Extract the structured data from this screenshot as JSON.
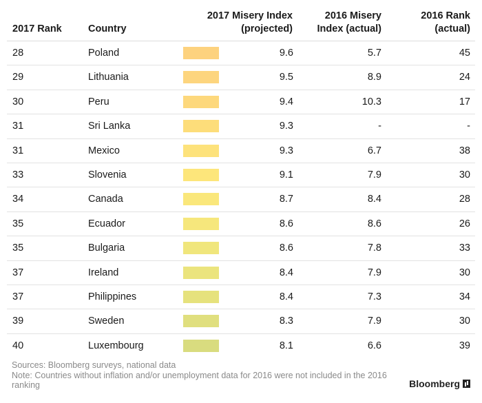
{
  "chart_data": {
    "type": "table",
    "columns": [
      "2017 Rank",
      "Country",
      "2017 Misery Index\n(projected)",
      "2016 Misery\nIndex (actual)",
      "2016 Rank\n(actual)"
    ],
    "rows": [
      {
        "rank2017": "28",
        "country": "Poland",
        "misery2017": "9.6",
        "misery2016": "5.7",
        "rank2016": "45",
        "color": "#fdd27e"
      },
      {
        "rank2017": "29",
        "country": "Lithuania",
        "misery2017": "9.5",
        "misery2016": "8.9",
        "rank2016": "24",
        "color": "#fdd57e"
      },
      {
        "rank2017": "30",
        "country": "Peru",
        "misery2017": "9.4",
        "misery2016": "10.3",
        "rank2016": "17",
        "color": "#fdd87c"
      },
      {
        "rank2017": "31",
        "country": "Sri Lanka",
        "misery2017": "9.3",
        "misery2016": "-",
        "rank2016": "-",
        "color": "#fddd7a"
      },
      {
        "rank2017": "31",
        "country": "Mexico",
        "misery2017": "9.3",
        "misery2016": "6.7",
        "rank2016": "38",
        "color": "#fde27b"
      },
      {
        "rank2017": "33",
        "country": "Slovenia",
        "misery2017": "9.1",
        "misery2016": "7.9",
        "rank2016": "30",
        "color": "#fde67b"
      },
      {
        "rank2017": "34",
        "country": "Canada",
        "misery2017": "8.7",
        "misery2016": "8.4",
        "rank2016": "28",
        "color": "#fae77b"
      },
      {
        "rank2017": "35",
        "country": "Ecuador",
        "misery2017": "8.6",
        "misery2016": "8.6",
        "rank2016": "26",
        "color": "#f6e77c"
      },
      {
        "rank2017": "35",
        "country": "Bulgaria",
        "misery2017": "8.6",
        "misery2016": "7.8",
        "rank2016": "33",
        "color": "#f0e67c"
      },
      {
        "rank2017": "37",
        "country": "Ireland",
        "misery2017": "8.4",
        "misery2016": "7.9",
        "rank2016": "30",
        "color": "#ebe47d"
      },
      {
        "rank2017": "37",
        "country": "Philippines",
        "misery2017": "8.4",
        "misery2016": "7.3",
        "rank2016": "34",
        "color": "#e6e27d"
      },
      {
        "rank2017": "39",
        "country": "Sweden",
        "misery2017": "8.3",
        "misery2016": "7.9",
        "rank2016": "30",
        "color": "#e0df7e"
      },
      {
        "rank2017": "40",
        "country": "Luxembourg",
        "misery2017": "8.1",
        "misery2016": "6.6",
        "rank2016": "39",
        "color": "#d9dc7f"
      }
    ]
  },
  "footer": {
    "sources": "Sources: Bloomberg surveys, national data",
    "note": "Note: Countries without inflation and/or unemployment data for 2016 were not included in the 2016 ranking"
  },
  "brand": {
    "name": "Bloomberg"
  }
}
